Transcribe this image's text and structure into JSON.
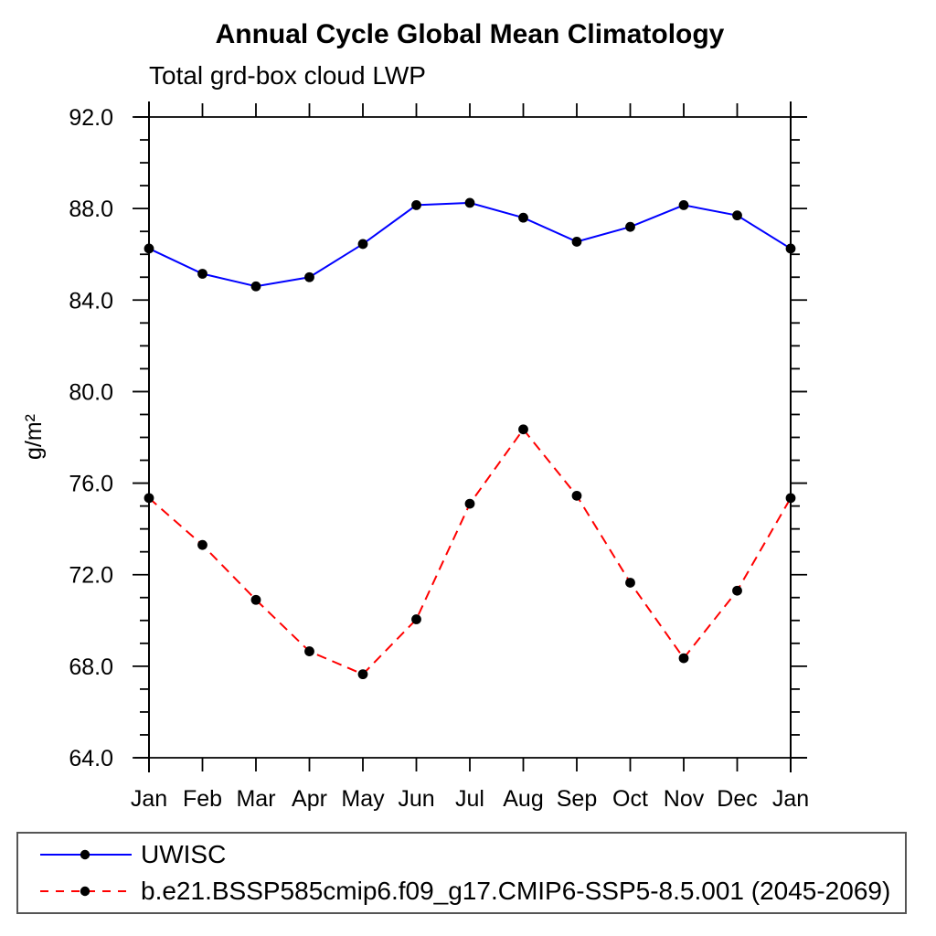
{
  "chart_data": {
    "type": "line",
    "title": "Annual Cycle Global Mean Climatology",
    "subtitle": "Total grd-box cloud LWP",
    "ylabel": "g/m²",
    "ylim": [
      64.0,
      92.0
    ],
    "y_major_ticks": [
      64.0,
      68.0,
      72.0,
      76.0,
      80.0,
      84.0,
      88.0,
      92.0
    ],
    "y_tick_labels": [
      "64.0",
      "68.0",
      "72.0",
      "76.0",
      "80.0",
      "84.0",
      "88.0",
      "92.0"
    ],
    "y_minor_tick_step": 1.0,
    "x_categories": [
      "Jan",
      "Feb",
      "Mar",
      "Apr",
      "May",
      "Jun",
      "Jul",
      "Aug",
      "Sep",
      "Oct",
      "Nov",
      "Dec",
      "Jan"
    ],
    "grid": false,
    "legend_position": "bottom-left-box",
    "frame_color": "#000000",
    "series": [
      {
        "name": "UWISC",
        "line_color": "#0000ff",
        "line_style": "solid",
        "marker": "filled-circle",
        "marker_color": "#000000",
        "values": [
          86.25,
          85.15,
          84.6,
          85.0,
          86.45,
          88.15,
          88.25,
          87.6,
          86.55,
          87.2,
          88.15,
          87.7,
          86.25
        ]
      },
      {
        "name": "b.e21.BSSP585cmip6.f09_g17.CMIP6-SSP5-8.5.001 (2045-2069)",
        "line_color": "#ff0000",
        "line_style": "dashed",
        "marker": "filled-circle",
        "marker_color": "#000000",
        "values": [
          75.35,
          73.3,
          70.9,
          68.65,
          67.65,
          70.05,
          75.1,
          78.35,
          75.45,
          71.65,
          68.35,
          71.3,
          75.35
        ]
      }
    ]
  }
}
